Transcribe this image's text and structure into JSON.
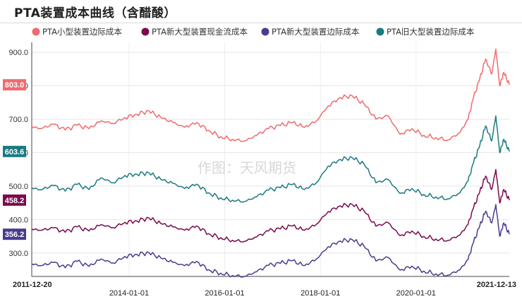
{
  "chart_data": {
    "type": "line",
    "title": "PTA装置成本曲线（含醋酸）",
    "watermark": "作图：天风期货",
    "xlabel": "",
    "ylabel": "",
    "ylim": [
      230,
      930
    ],
    "x_range": [
      "2011-12-20",
      "2021-12-13"
    ],
    "x_ticks": [
      "2011-12-20",
      "2014-01-01",
      "2016-01-01",
      "2018-01-01",
      "2020-01-01",
      "2021-12-13"
    ],
    "y_ticks": [
      300,
      400,
      500,
      600,
      700,
      800,
      900
    ],
    "y_tick_labels": [
      "300.0",
      "400.0",
      "500.0",
      "600.0",
      "700.0",
      "800.0",
      "900.0"
    ],
    "grid": true,
    "legend_position": "top",
    "x": [
      "2011-12-20",
      "2012-03-01",
      "2012-06-01",
      "2012-09-01",
      "2012-12-01",
      "2013-03-01",
      "2013-06-01",
      "2013-09-01",
      "2013-12-01",
      "2014-03-01",
      "2014-06-01",
      "2014-09-01",
      "2014-12-01",
      "2015-03-01",
      "2015-06-01",
      "2015-09-01",
      "2015-12-01",
      "2016-03-01",
      "2016-06-01",
      "2016-09-01",
      "2016-12-01",
      "2017-03-01",
      "2017-06-01",
      "2017-09-01",
      "2017-12-01",
      "2018-03-01",
      "2018-06-01",
      "2018-09-01",
      "2018-12-01",
      "2019-03-01",
      "2019-06-01",
      "2019-09-01",
      "2019-12-01",
      "2020-03-01",
      "2020-06-01",
      "2020-09-01",
      "2020-12-01",
      "2021-02-01",
      "2021-03-15",
      "2021-05-01",
      "2021-06-15",
      "2021-08-01",
      "2021-09-01",
      "2021-10-01",
      "2021-11-01",
      "2021-12-13"
    ],
    "series": [
      {
        "name": "PTA小型装置边际成本",
        "color": "#f06a6e",
        "end_label": "803.0",
        "values": [
          678,
          672,
          685,
          668,
          682,
          672,
          695,
          688,
          705,
          715,
          725,
          705,
          690,
          676,
          690,
          667,
          648,
          640,
          635,
          652,
          672,
          681,
          690,
          676,
          695,
          740,
          765,
          770,
          745,
          700,
          710,
          655,
          672,
          652,
          645,
          638,
          660,
          700,
          765,
          820,
          880,
          835,
          910,
          800,
          840,
          803
        ]
      },
      {
        "name": "PTA新大型装置现金流成本",
        "color": "#7a0a4e",
        "end_label": "458.2",
        "values": [
          372,
          368,
          375,
          362,
          378,
          366,
          385,
          376,
          392,
          396,
          405,
          388,
          378,
          368,
          381,
          358,
          346,
          338,
          335,
          348,
          366,
          372,
          381,
          368,
          386,
          424,
          441,
          445,
          425,
          380,
          391,
          352,
          366,
          350,
          342,
          338,
          354,
          385,
          435,
          482,
          530,
          490,
          550,
          450,
          490,
          458.2
        ]
      },
      {
        "name": "PTA新大型装置边际成本",
        "color": "#4a3b8e",
        "end_label": "356.2",
        "values": [
          268,
          262,
          272,
          256,
          275,
          260,
          282,
          270,
          290,
          296,
          301,
          285,
          272,
          262,
          275,
          250,
          240,
          233,
          230,
          244,
          263,
          269,
          277,
          262,
          282,
          319,
          336,
          340,
          320,
          276,
          287,
          249,
          261,
          246,
          238,
          234,
          250,
          280,
          332,
          380,
          425,
          390,
          445,
          350,
          390,
          356.2
        ]
      },
      {
        "name": "PTA旧大型装置边际成本",
        "color": "#1a7a80",
        "end_label": "603.6",
        "values": [
          495,
          489,
          502,
          485,
          505,
          490,
          525,
          510,
          532,
          536,
          540,
          520,
          508,
          493,
          506,
          480,
          465,
          458,
          454,
          468,
          488,
          495,
          505,
          490,
          510,
          560,
          580,
          585,
          565,
          510,
          520,
          478,
          493,
          475,
          468,
          462,
          480,
          515,
          570,
          620,
          680,
          635,
          710,
          600,
          640,
          603.6
        ]
      }
    ]
  }
}
